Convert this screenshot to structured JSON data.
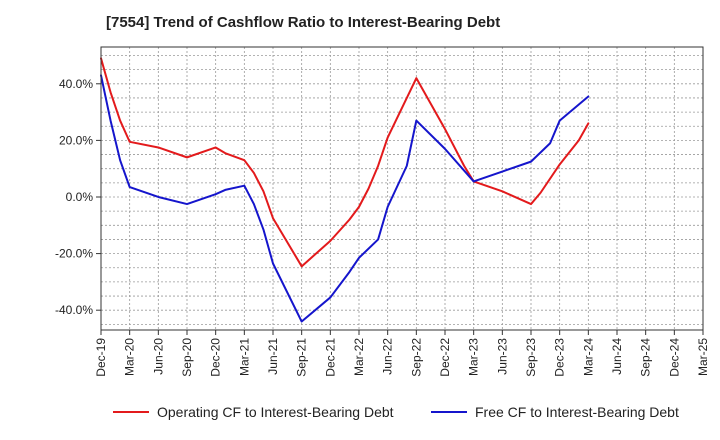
{
  "title": "[7554]  Trend of Cashflow Ratio to Interest-Bearing Debt",
  "colors": {
    "operating": "#e31a1c",
    "free": "#1515cc"
  },
  "chart_data": {
    "type": "line",
    "title": "[7554]  Trend of Cashflow Ratio to Interest-Bearing Debt",
    "xlabel": "",
    "ylabel": "",
    "x_tick_labels": [
      "Dec-19",
      "Mar-20",
      "Jun-20",
      "Sep-20",
      "Dec-20",
      "Mar-21",
      "Jun-21",
      "Sep-21",
      "Dec-21",
      "Mar-22",
      "Jun-22",
      "Sep-22",
      "Dec-22",
      "Mar-23",
      "Jun-23",
      "Sep-23",
      "Dec-23",
      "Mar-24",
      "Jun-24",
      "Sep-24",
      "Dec-24",
      "Mar-25"
    ],
    "y_ticks": [
      -40,
      -20,
      0,
      20,
      40
    ],
    "y_tick_labels": [
      "-40.0%",
      "-20.0%",
      "0.0%",
      "20.0%",
      "40.0%"
    ],
    "ylim": [
      -47,
      53
    ],
    "grid": true,
    "legend_position": "bottom",
    "series": [
      {
        "name": "Operating CF to Interest-Bearing Debt",
        "color": "#e31a1c",
        "points": [
          [
            "Dec-19",
            49
          ],
          [
            "Jan-20",
            37
          ],
          [
            "Feb-20",
            27
          ],
          [
            "Mar-20",
            19.5
          ],
          [
            "Jun-20",
            17.5
          ],
          [
            "Sep-20",
            14
          ],
          [
            "Dec-20",
            17.5
          ],
          [
            "Jan-21",
            15.5
          ],
          [
            "Mar-21",
            13
          ],
          [
            "Apr-21",
            8.5
          ],
          [
            "May-21",
            2
          ],
          [
            "Jun-21",
            -7.5
          ],
          [
            "Sep-21",
            -24.5
          ],
          [
            "Dec-21",
            -15.5
          ],
          [
            "Feb-22",
            -8
          ],
          [
            "Mar-22",
            -3.5
          ],
          [
            "Apr-22",
            3
          ],
          [
            "May-22",
            11
          ],
          [
            "Jun-22",
            21
          ],
          [
            "Sep-22",
            42
          ],
          [
            "Dec-22",
            24
          ],
          [
            "Feb-23",
            11
          ],
          [
            "Mar-23",
            5.5
          ],
          [
            "Jun-23",
            2
          ],
          [
            "Aug-23",
            -1
          ],
          [
            "Sep-23",
            -2.5
          ],
          [
            "Oct-23",
            1.5
          ],
          [
            "Dec-23",
            11.5
          ],
          [
            "Feb-24",
            20
          ],
          [
            "Mar-24",
            26
          ]
        ]
      },
      {
        "name": "Free CF to Interest-Bearing Debt",
        "color": "#1515cc",
        "points": [
          [
            "Dec-19",
            43
          ],
          [
            "Jan-20",
            27
          ],
          [
            "Feb-20",
            13
          ],
          [
            "Mar-20",
            3.5
          ],
          [
            "Jun-20",
            0
          ],
          [
            "Sep-20",
            -2.5
          ],
          [
            "Dec-20",
            1
          ],
          [
            "Jan-21",
            2.5
          ],
          [
            "Mar-21",
            4
          ],
          [
            "Apr-21",
            -2.5
          ],
          [
            "May-21",
            -11.5
          ],
          [
            "Jun-21",
            -23.5
          ],
          [
            "Sep-21",
            -44
          ],
          [
            "Dec-21",
            -35.5
          ],
          [
            "Feb-22",
            -26.5
          ],
          [
            "Mar-22",
            -21.5
          ],
          [
            "May-22",
            -15
          ],
          [
            "Jun-22",
            -3.5
          ],
          [
            "Aug-22",
            11
          ],
          [
            "Sep-22",
            27
          ],
          [
            "Dec-22",
            17
          ],
          [
            "Mar-23",
            5.5
          ],
          [
            "Jun-23",
            9
          ],
          [
            "Sep-23",
            12.5
          ],
          [
            "Nov-23",
            19
          ],
          [
            "Dec-23",
            27
          ],
          [
            "Mar-24",
            35.5
          ]
        ]
      }
    ]
  }
}
